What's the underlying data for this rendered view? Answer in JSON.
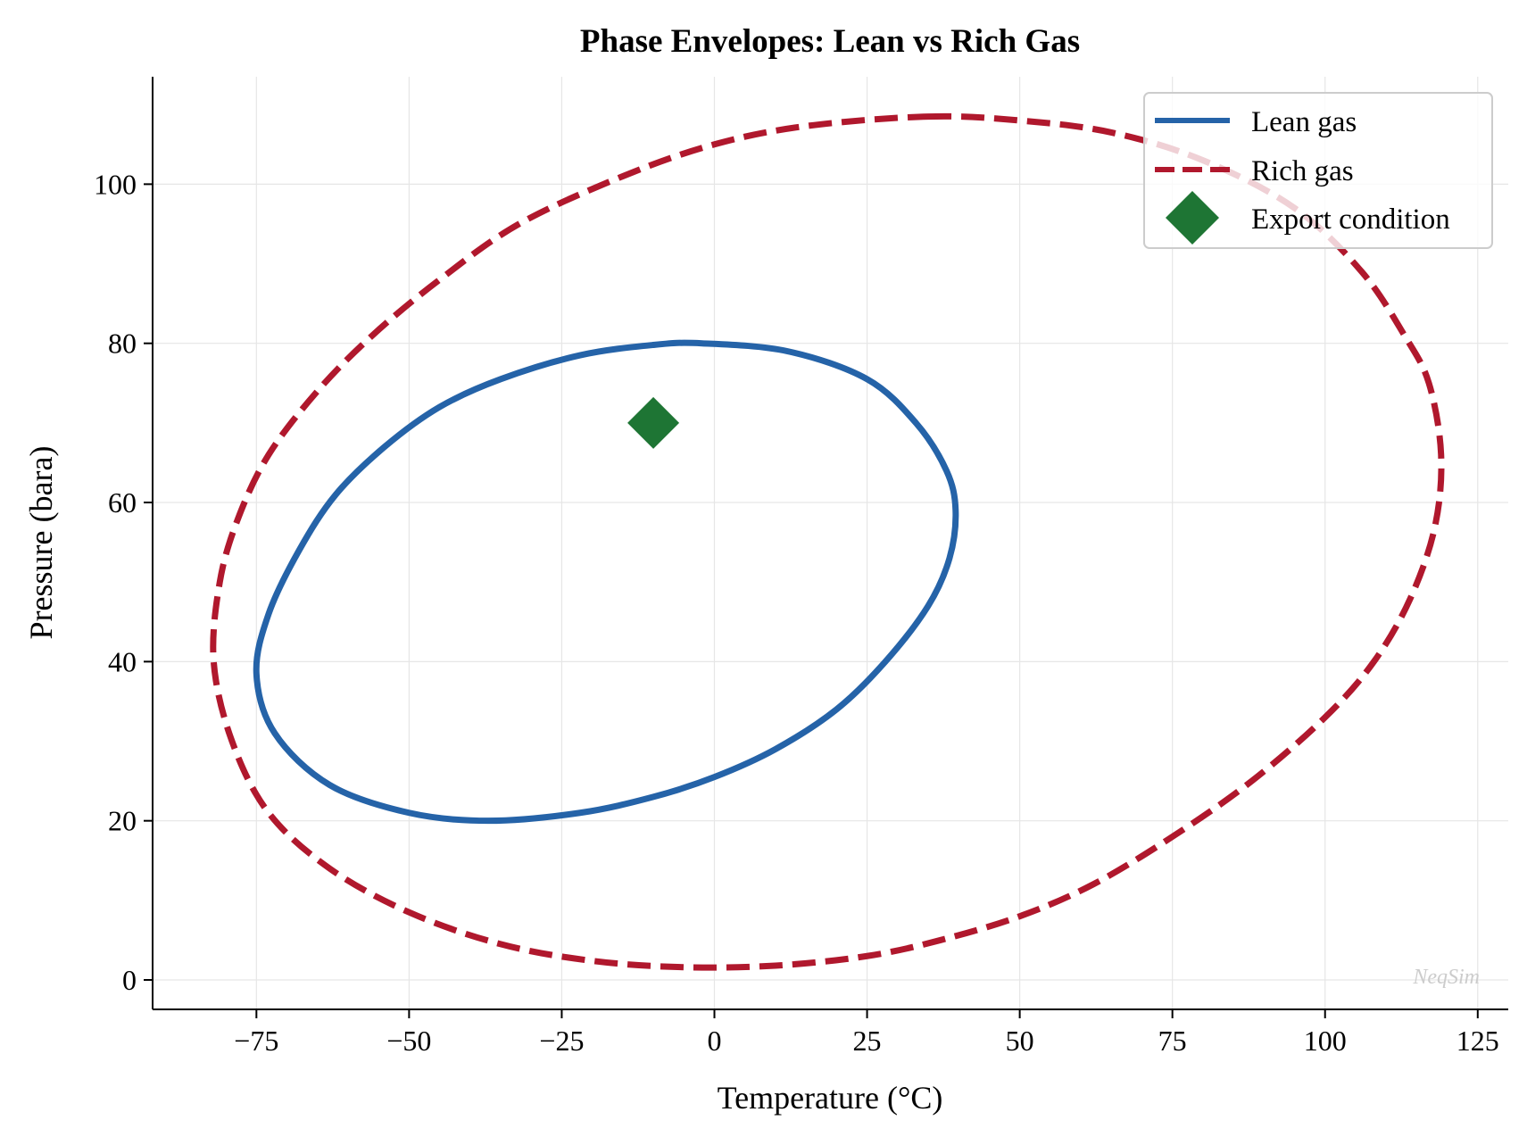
{
  "chart_data": {
    "type": "line",
    "title": "Phase Envelopes: Lean vs Rich Gas",
    "xlabel": "Temperature (°C)",
    "ylabel": "Pressure (bara)",
    "xlim": [
      -92,
      130
    ],
    "ylim": [
      -3.7,
      113.5
    ],
    "x_ticks": [
      -75,
      -50,
      -25,
      0,
      25,
      50,
      75,
      100,
      125
    ],
    "x_tick_labels": [
      "−75",
      "−50",
      "−25",
      "0",
      "25",
      "50",
      "75",
      "100",
      "125"
    ],
    "y_ticks": [
      0,
      20,
      40,
      60,
      80,
      100
    ],
    "y_tick_labels": [
      "0",
      "20",
      "40",
      "60",
      "80",
      "100"
    ],
    "grid": true,
    "legend_position": "top-right",
    "watermark": "NeqSim",
    "series": [
      {
        "name": "Lean gas",
        "style": "solid",
        "color": "#2563a8",
        "points": [
          [
            -2,
            80
          ],
          [
            12,
            79
          ],
          [
            25,
            75.5
          ],
          [
            33,
            70
          ],
          [
            38,
            64
          ],
          [
            39.5,
            59
          ],
          [
            38.5,
            53
          ],
          [
            35,
            47
          ],
          [
            28,
            40
          ],
          [
            20,
            34
          ],
          [
            10,
            29
          ],
          [
            0,
            25.5
          ],
          [
            -10,
            23
          ],
          [
            -22,
            21
          ],
          [
            -37,
            20
          ],
          [
            -50,
            21
          ],
          [
            -63,
            24.5
          ],
          [
            -72,
            31
          ],
          [
            -75,
            38.5
          ],
          [
            -73,
            46
          ],
          [
            -68,
            54
          ],
          [
            -62,
            61
          ],
          [
            -54,
            67
          ],
          [
            -45,
            72
          ],
          [
            -35,
            75.5
          ],
          [
            -22,
            78.5
          ],
          [
            -10,
            79.8
          ],
          [
            -2,
            80
          ]
        ]
      },
      {
        "name": "Rich gas",
        "style": "dashed",
        "color": "#b0182d",
        "points": [
          [
            35,
            108.5
          ],
          [
            50,
            108
          ],
          [
            65,
            106.5
          ],
          [
            80,
            103
          ],
          [
            95,
            97
          ],
          [
            106,
            89
          ],
          [
            113,
            81
          ],
          [
            117,
            75
          ],
          [
            119,
            66
          ],
          [
            118,
            57
          ],
          [
            114,
            48
          ],
          [
            108,
            40
          ],
          [
            100,
            33
          ],
          [
            88,
            25
          ],
          [
            75,
            18
          ],
          [
            62,
            12
          ],
          [
            50,
            8
          ],
          [
            37,
            5
          ],
          [
            25,
            3
          ],
          [
            10,
            1.8
          ],
          [
            -5,
            1.6
          ],
          [
            -20,
            2.4
          ],
          [
            -35,
            4.5
          ],
          [
            -50,
            8.5
          ],
          [
            -63,
            14
          ],
          [
            -73,
            21
          ],
          [
            -79,
            30
          ],
          [
            -82,
            40
          ],
          [
            -81,
            50
          ],
          [
            -78,
            58
          ],
          [
            -73,
            66
          ],
          [
            -65,
            74
          ],
          [
            -56,
            81
          ],
          [
            -45,
            88
          ],
          [
            -32,
            95
          ],
          [
            -15,
            101
          ],
          [
            0,
            105
          ],
          [
            15,
            107.3
          ],
          [
            35,
            108.5
          ]
        ]
      },
      {
        "name": "Export condition",
        "style": "marker",
        "marker": "diamond",
        "color": "#1e7534",
        "points": [
          [
            -10,
            70
          ]
        ]
      }
    ]
  }
}
